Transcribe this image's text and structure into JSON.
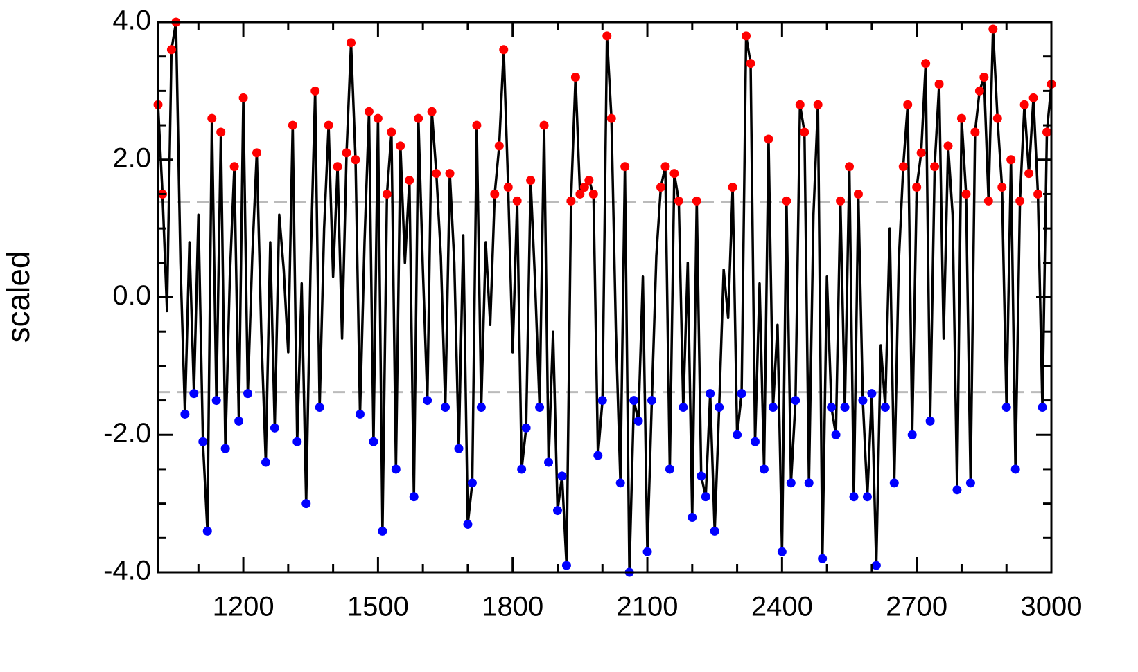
{
  "chart_data": {
    "type": "line",
    "ylabel": "scaled",
    "xlim": [
      1010,
      3000
    ],
    "ylim": [
      -4,
      4
    ],
    "xticks": [
      1200,
      1500,
      1800,
      2100,
      2400,
      2700,
      3000
    ],
    "xminorticks": [
      1100,
      1300,
      1400,
      1600,
      1700,
      1900,
      2000,
      2200,
      2300,
      2500,
      2600,
      2800,
      2900
    ],
    "yticks": [
      {
        "value": -4,
        "label": "-4.0"
      },
      {
        "value": -2,
        "label": "-2.0"
      },
      {
        "value": 0,
        "label": "0.0"
      },
      {
        "value": 2,
        "label": "2.0"
      },
      {
        "value": 4,
        "label": "4.0"
      }
    ],
    "yminorticks": [
      -3.5,
      -3,
      -2.5,
      -1.5,
      -1,
      -0.5,
      0.5,
      1,
      1.5,
      2.5,
      3,
      3.5
    ],
    "reference_lines": [
      1.38,
      -1.38
    ],
    "reference_color": "#bbbbbb",
    "above_color": "#ff0000",
    "below_color": "#0000ff",
    "x": [
      1010,
      1020,
      1030,
      1040,
      1050,
      1060,
      1070,
      1080,
      1090,
      1100,
      1110,
      1120,
      1130,
      1140,
      1150,
      1160,
      1170,
      1180,
      1190,
      1200,
      1210,
      1220,
      1230,
      1240,
      1250,
      1260,
      1270,
      1280,
      1290,
      1300,
      1310,
      1320,
      1330,
      1340,
      1350,
      1360,
      1370,
      1380,
      1390,
      1400,
      1410,
      1420,
      1430,
      1440,
      1450,
      1460,
      1470,
      1480,
      1490,
      1500,
      1510,
      1520,
      1530,
      1540,
      1550,
      1560,
      1570,
      1580,
      1590,
      1600,
      1610,
      1620,
      1630,
      1640,
      1650,
      1660,
      1670,
      1680,
      1690,
      1700,
      1710,
      1720,
      1730,
      1740,
      1750,
      1760,
      1770,
      1780,
      1790,
      1800,
      1810,
      1820,
      1830,
      1840,
      1850,
      1860,
      1870,
      1880,
      1890,
      1900,
      1910,
      1920,
      1930,
      1940,
      1950,
      1960,
      1970,
      1980,
      1990,
      2000,
      2010,
      2020,
      2030,
      2040,
      2050,
      2060,
      2070,
      2080,
      2090,
      2100,
      2110,
      2120,
      2130,
      2140,
      2150,
      2160,
      2170,
      2180,
      2190,
      2200,
      2210,
      2220,
      2230,
      2240,
      2250,
      2260,
      2270,
      2280,
      2290,
      2300,
      2310,
      2320,
      2330,
      2340,
      2350,
      2360,
      2370,
      2380,
      2390,
      2400,
      2410,
      2420,
      2430,
      2440,
      2450,
      2460,
      2470,
      2480,
      2490,
      2500,
      2510,
      2520,
      2530,
      2540,
      2550,
      2560,
      2570,
      2580,
      2590,
      2600,
      2610,
      2620,
      2630,
      2640,
      2650,
      2660,
      2670,
      2680,
      2690,
      2700,
      2710,
      2720,
      2730,
      2740,
      2750,
      2760,
      2770,
      2780,
      2790,
      2800,
      2810,
      2820,
      2830,
      2840,
      2850,
      2860,
      2870,
      2880,
      2890,
      2900,
      2910,
      2920,
      2930,
      2940,
      2950,
      2960,
      2970,
      2980,
      2990,
      3000
    ],
    "series": [
      {
        "color": "#000000",
        "values": [
          2.8,
          1.5,
          -0.2,
          3.6,
          4.0,
          0.5,
          -1.7,
          0.8,
          -1.4,
          1.2,
          -2.1,
          -3.4,
          2.6,
          -1.5,
          2.4,
          -2.2,
          0.3,
          1.9,
          -1.8,
          2.9,
          -1.4,
          0.6,
          2.1,
          -0.5,
          -2.4,
          0.8,
          -1.9,
          1.2,
          0.4,
          -0.8,
          2.5,
          -2.1,
          0.2,
          -3.0,
          0.5,
          3.0,
          -1.6,
          1.0,
          2.5,
          0.3,
          1.9,
          -0.6,
          2.1,
          3.7,
          2.0,
          -1.7,
          0.8,
          2.7,
          -2.1,
          2.6,
          -3.4,
          1.5,
          2.4,
          -2.5,
          2.2,
          0.5,
          1.7,
          -2.9,
          2.6,
          0.4,
          -1.5,
          2.7,
          1.8,
          0.6,
          -1.6,
          1.8,
          0.5,
          -2.2,
          0.9,
          -3.3,
          -2.7,
          2.5,
          -1.6,
          0.8,
          -0.4,
          1.5,
          2.2,
          3.6,
          1.6,
          -0.8,
          1.4,
          -2.5,
          -1.9,
          1.7,
          0.2,
          -1.6,
          2.5,
          -2.4,
          -0.5,
          -3.1,
          -2.6,
          -3.9,
          1.4,
          3.2,
          1.5,
          1.6,
          1.7,
          1.5,
          -2.3,
          -1.5,
          3.8,
          2.6,
          -0.5,
          -2.7,
          1.9,
          -4.0,
          -1.5,
          -1.8,
          0.3,
          -3.7,
          -1.5,
          0.6,
          1.6,
          1.9,
          -2.5,
          1.8,
          1.4,
          -1.6,
          0.5,
          -3.2,
          1.4,
          -2.6,
          -2.9,
          -1.4,
          -3.4,
          -1.6,
          0.4,
          -0.3,
          1.6,
          -2.0,
          -1.4,
          3.8,
          3.4,
          -2.1,
          0.2,
          -2.5,
          2.3,
          -1.6,
          -0.4,
          -3.7,
          1.4,
          -2.7,
          -1.5,
          2.8,
          2.4,
          -2.7,
          1.2,
          2.8,
          -3.8,
          0.3,
          -1.6,
          -2.0,
          1.4,
          -1.6,
          1.9,
          -2.9,
          1.5,
          -1.5,
          -2.9,
          -1.4,
          -3.9,
          -0.7,
          -1.6,
          1.0,
          -2.7,
          0.5,
          1.9,
          2.8,
          -2.0,
          1.6,
          2.1,
          3.4,
          -1.8,
          1.9,
          3.1,
          -0.6,
          2.2,
          1.2,
          -2.8,
          2.6,
          1.5,
          -2.7,
          2.4,
          3.0,
          3.2,
          1.4,
          3.9,
          2.6,
          1.6,
          -1.6,
          2.0,
          -2.5,
          1.4,
          2.8,
          1.8,
          2.9,
          1.5,
          -1.6,
          2.4,
          3.1
        ]
      }
    ]
  }
}
